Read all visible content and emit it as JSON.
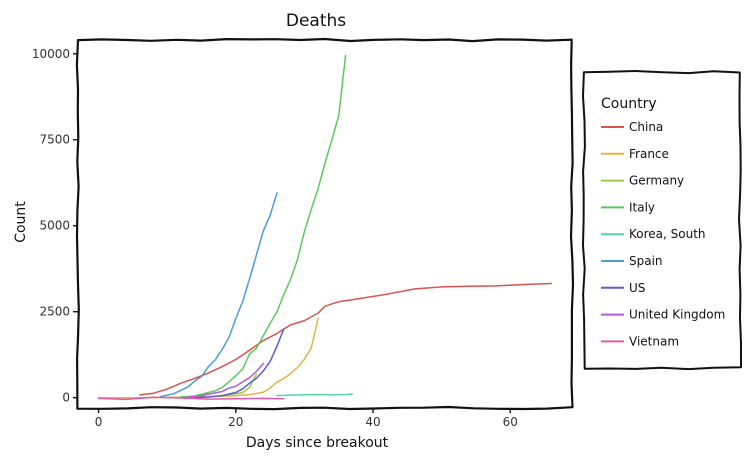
{
  "chart_data": {
    "type": "line",
    "title": "Deaths",
    "xlabel": "Days since breakout",
    "ylabel": "Count",
    "xlim": [
      -3,
      69
    ],
    "ylim": [
      -300,
      10400
    ],
    "x_ticks": [
      0,
      20,
      40,
      60
    ],
    "x_tick_labels": [
      "0",
      "20",
      "40",
      "60"
    ],
    "y_ticks": [
      0,
      2500,
      5000,
      7500,
      10000
    ],
    "y_tick_labels": [
      "0",
      "2500",
      "5000",
      "7500",
      "10000"
    ],
    "grid": false,
    "legend": {
      "title": "Country",
      "placement": "right"
    },
    "series": [
      {
        "name": "China",
        "color": "#d9534f",
        "x": [
          6,
          8,
          10,
          12,
          14,
          16,
          18,
          20,
          22,
          24,
          26,
          28,
          30,
          32,
          33,
          35,
          38,
          42,
          46,
          50,
          54,
          58,
          62,
          66
        ],
        "y": [
          80,
          130,
          250,
          420,
          560,
          720,
          900,
          1110,
          1380,
          1660,
          1870,
          2120,
          2240,
          2460,
          2660,
          2790,
          2880,
          3010,
          3160,
          3220,
          3240,
          3250,
          3290,
          3320
        ]
      },
      {
        "name": "France",
        "color": "#e8b04b",
        "x": [
          0,
          6,
          12,
          16,
          20,
          22,
          24,
          25,
          26,
          27,
          28,
          29,
          30,
          31,
          32
        ],
        "y": [
          0,
          0,
          10,
          30,
          60,
          90,
          160,
          280,
          450,
          560,
          700,
          880,
          1120,
          1450,
          2310
        ]
      },
      {
        "name": "Germany",
        "color": "#9acd3f",
        "x": [
          10,
          14,
          18,
          21,
          22,
          23
        ],
        "y": [
          0,
          10,
          50,
          150,
          300,
          680
        ]
      },
      {
        "name": "Italy",
        "color": "#5cc95c",
        "x": [
          12,
          14,
          16,
          17,
          18,
          19,
          20,
          21,
          22,
          23,
          24,
          25,
          26,
          27,
          28,
          29,
          30,
          31,
          32,
          33,
          34,
          35,
          36
        ],
        "y": [
          20,
          50,
          150,
          200,
          300,
          460,
          640,
          830,
          1270,
          1440,
          1800,
          2160,
          2500,
          3000,
          3450,
          4030,
          4830,
          5480,
          6080,
          6820,
          7500,
          8200,
          9950
        ]
      },
      {
        "name": "Korea, South",
        "color": "#4fd6b0",
        "x": [
          26,
          28,
          30,
          32,
          34,
          36,
          37
        ],
        "y": [
          60,
          75,
          85,
          90,
          88,
          90,
          110
        ]
      },
      {
        "name": "Spain",
        "color": "#4b9cd9",
        "x": [
          9,
          11,
          13,
          14,
          15,
          16,
          17,
          18,
          19,
          20,
          21,
          22,
          23,
          24,
          25,
          26
        ],
        "y": [
          30,
          120,
          310,
          480,
          620,
          900,
          1100,
          1400,
          1750,
          2300,
          2800,
          3450,
          4150,
          4850,
          5300,
          5950
        ]
      },
      {
        "name": "US",
        "color": "#5b5bd6",
        "x": [
          14,
          16,
          18,
          20,
          21,
          22,
          23,
          24,
          25,
          26,
          27
        ],
        "y": [
          0,
          20,
          60,
          150,
          260,
          420,
          560,
          780,
          1050,
          1500,
          2000
        ]
      },
      {
        "name": "United Kingdom",
        "color": "#b45ad6",
        "x": [
          12,
          14,
          16,
          18,
          19,
          20,
          21,
          22,
          23,
          24
        ],
        "y": [
          0,
          30,
          100,
          180,
          280,
          330,
          460,
          580,
          760,
          990
        ]
      },
      {
        "name": "Vietnam",
        "color": "#e05aa8",
        "x": [
          0,
          4,
          8,
          12,
          16,
          20,
          24,
          27
        ],
        "y": [
          -20,
          -50,
          10,
          -10,
          -40,
          -30,
          -20,
          -30
        ]
      }
    ]
  }
}
